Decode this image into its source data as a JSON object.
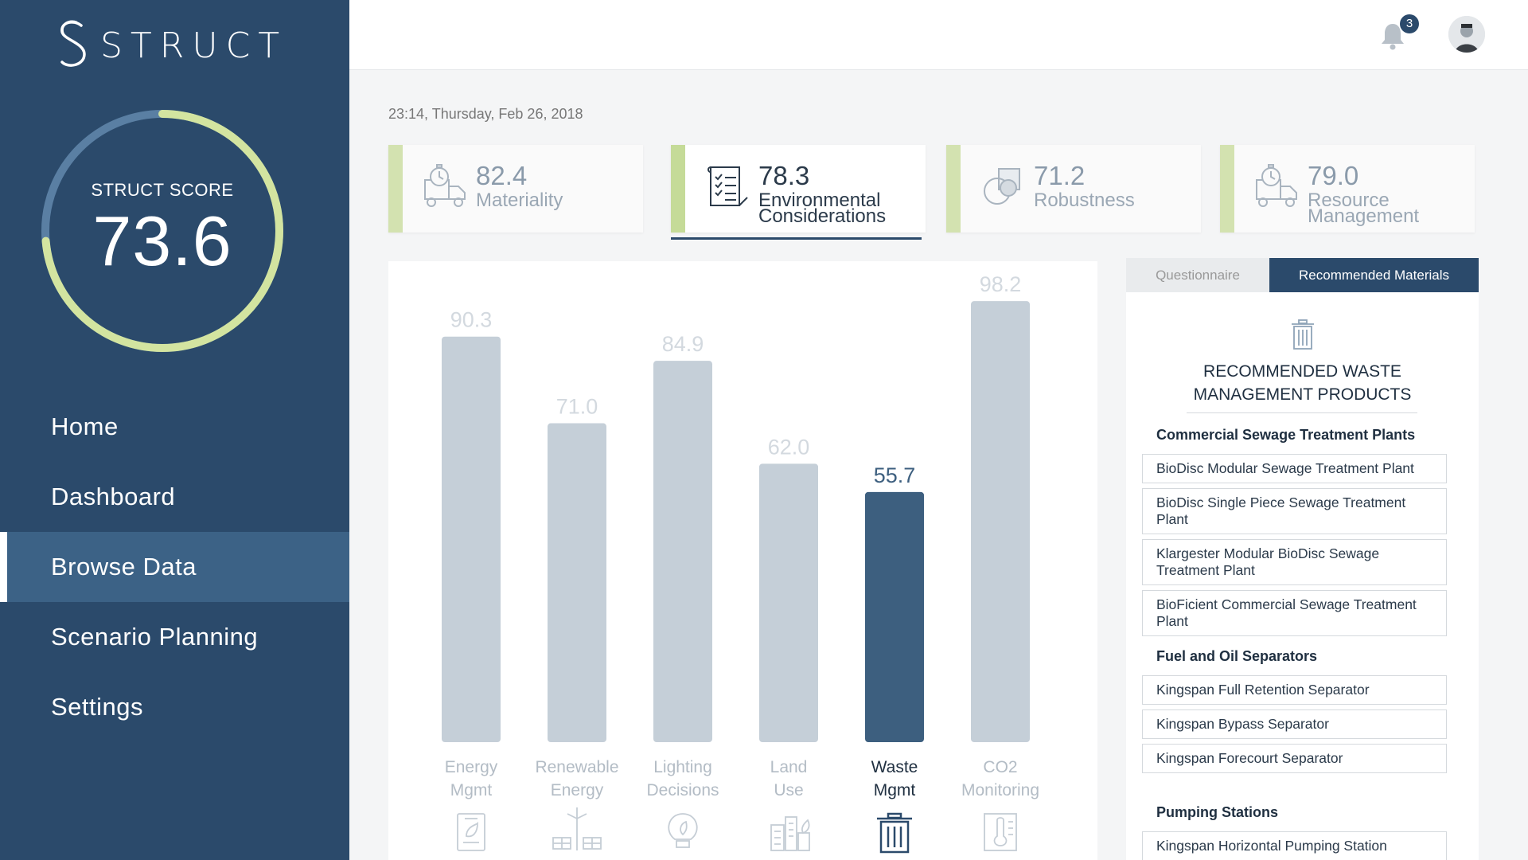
{
  "brand": {
    "name": "STRUCT"
  },
  "score": {
    "label": "STRUCT SCORE",
    "value": "73.6",
    "fraction": 0.736
  },
  "nav": {
    "items": [
      {
        "label": "Home"
      },
      {
        "label": "Dashboard"
      },
      {
        "label": "Browse Data",
        "active": true
      },
      {
        "label": "Scenario Planning"
      },
      {
        "label": "Settings"
      }
    ]
  },
  "topbar": {
    "notification_count": "3",
    "bell_icon": "bell-icon",
    "avatar": "user-avatar"
  },
  "datetime": "23:14, Thursday, Feb 26, 2018",
  "kpis": [
    {
      "value": "82.4",
      "label": "Materiality",
      "icon": "truck-clock-icon"
    },
    {
      "value": "78.3",
      "label": "Environmental Considerations",
      "icon": "checklist-icon",
      "active": true
    },
    {
      "value": "71.2",
      "label": "Robustness",
      "icon": "overlap-shapes-icon"
    },
    {
      "value": "79.0",
      "label": "Resource Management",
      "icon": "truck-clock-icon"
    }
  ],
  "chart_data": {
    "type": "bar",
    "categories": [
      "Energy Mgmt",
      "Renewable Energy",
      "Lighting Decisions",
      "Land Use",
      "Waste Mgmt",
      "CO2 Monitoring"
    ],
    "values": [
      90.3,
      71.0,
      84.9,
      62.0,
      55.7,
      98.2
    ],
    "value_labels": [
      "90.3",
      "71.0",
      "84.9",
      "62.0",
      "55.7",
      "98.2"
    ],
    "highlighted_index": 4,
    "icons": [
      "document-leaf-icon",
      "wind-solar-icon",
      "lightbulb-icon",
      "buildings-icon",
      "trash-can-icon",
      "thermometer-document-icon"
    ],
    "colors": {
      "bar": "#c5cfd8",
      "highlight": "#3d5f7f"
    },
    "ylim": [
      0,
      100
    ],
    "grid": false
  },
  "right_panel": {
    "tabs": [
      {
        "label": "Questionnaire",
        "active": false
      },
      {
        "label": "Recommended Materials",
        "active": true
      }
    ],
    "icon": "trash-can-icon",
    "title_line1": "RECOMMENDED WASTE",
    "title_line2": "MANAGEMENT PRODUCTS",
    "sections": [
      {
        "heading": "Commercial Sewage Treatment Plants",
        "items": [
          "BioDisc Modular Sewage Treatment Plant",
          "BioDisc Single Piece Sewage Treatment Plant",
          "Klargester Modular BioDisc Sewage Treatment Plant",
          "BioFicient Commercial Sewage Treatment Plant"
        ]
      },
      {
        "heading": "Fuel and Oil Separators",
        "items": [
          "Kingspan Full Retention Separator",
          "Kingspan Bypass Separator",
          "Kingspan Forecourt Separator"
        ]
      },
      {
        "heading": "Pumping Stations",
        "items": [
          "Kingspan Horizontal Pumping Station"
        ]
      }
    ]
  },
  "colors": {
    "sidebar": "#2b4a6b",
    "sidebar_active": "#3c6286",
    "ring": "#d3e4a0",
    "ring_track": "#5a7fa3",
    "accent_green": "#d3e2b0"
  }
}
